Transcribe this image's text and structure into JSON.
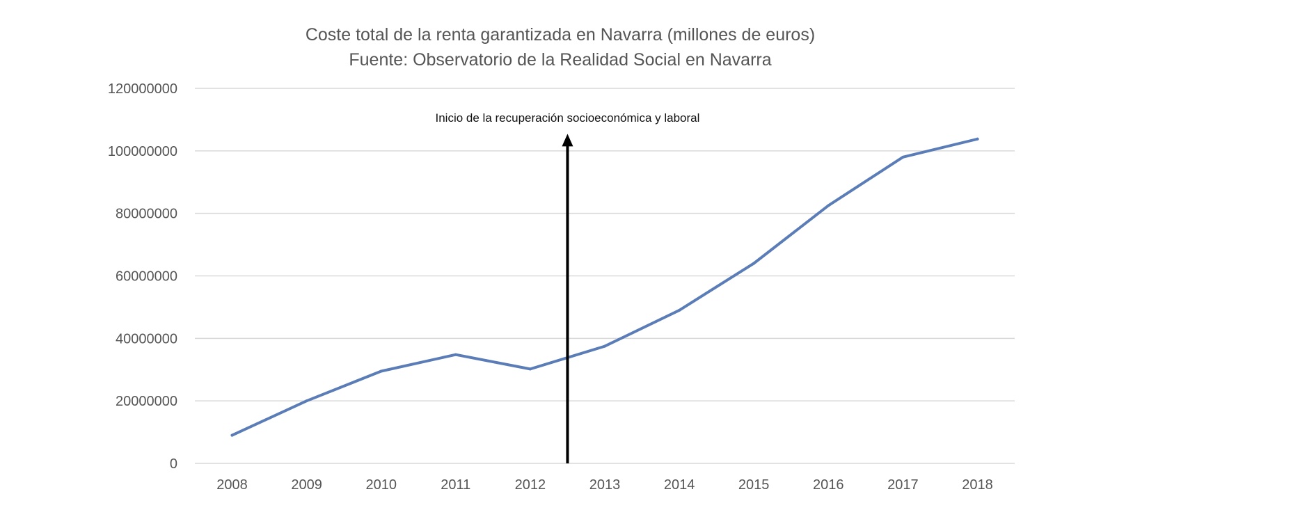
{
  "chart_data": {
    "type": "line",
    "title": "Coste total de la renta garantizada en Navarra (millones de euros)",
    "subtitle": "Fuente: Observatorio de la Realidad Social en Navarra",
    "xlabel": "",
    "ylabel": "",
    "categories": [
      "2008",
      "2009",
      "2010",
      "2011",
      "2012",
      "2013",
      "2014",
      "2015",
      "2016",
      "2017",
      "2018"
    ],
    "series": [
      {
        "name": "Coste total",
        "values": [
          9000000,
          20000000,
          29500000,
          34800000,
          30200000,
          37500000,
          49000000,
          64000000,
          82500000,
          98000000,
          103800000
        ]
      }
    ],
    "ylim": [
      0,
      120000000
    ],
    "yticks": [
      "0",
      "20000000",
      "40000000",
      "60000000",
      "80000000",
      "100000000",
      "120000000"
    ],
    "ytick_values": [
      0,
      20000000,
      40000000,
      60000000,
      80000000,
      100000000,
      120000000
    ],
    "grid": true,
    "legend": "none",
    "annotation": {
      "text": "Inicio de la recuperación socioeconómica y laboral",
      "x_between": [
        "2012",
        "2013"
      ],
      "x_fraction": 0.5,
      "arrow_top_value": 105000000
    },
    "colors": {
      "series": "#5b7db7",
      "grid": "#d9d9d9",
      "axis_text": "#555555",
      "arrow": "#000000"
    }
  }
}
